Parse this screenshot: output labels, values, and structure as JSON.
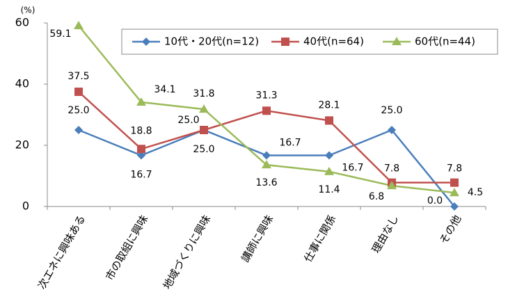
{
  "chart_data": {
    "type": "line",
    "ylabel": "(%)",
    "categories": [
      "次エネに興味ある",
      "市の取組に興味",
      "地域づくりに興味",
      "講師に興味",
      "仕事に関係",
      "理由なし",
      "その他"
    ],
    "series": [
      {
        "name": "10代・20代(n=12)",
        "color": "#4a7ebb",
        "marker": "diamond",
        "values": [
          25.0,
          16.7,
          25.0,
          16.7,
          16.7,
          25.0,
          0.0
        ],
        "value_labels": [
          "25.0",
          "16.7",
          "25.0",
          "16.7",
          "16.7",
          "25.0",
          "0.0"
        ]
      },
      {
        "name": "40代(n=64)",
        "color": "#c0504d",
        "marker": "square",
        "values": [
          37.5,
          18.8,
          25.0,
          31.3,
          28.1,
          7.8,
          7.8
        ],
        "value_labels": [
          "37.5",
          "18.8",
          "25.0",
          "31.3",
          "28.1",
          "7.8",
          "7.8"
        ]
      },
      {
        "name": "60代(n=44)",
        "color": "#9bbb59",
        "marker": "triangle",
        "values": [
          59.1,
          34.1,
          31.8,
          13.6,
          11.4,
          6.8,
          4.5
        ],
        "value_labels": [
          "59.1",
          "34.1",
          "31.8",
          "13.6",
          "11.4",
          "6.8",
          "4.5"
        ]
      }
    ],
    "ylim": [
      0,
      60
    ],
    "yticks": [
      0,
      20,
      40,
      60
    ],
    "grid": false,
    "legend": "upper right"
  }
}
